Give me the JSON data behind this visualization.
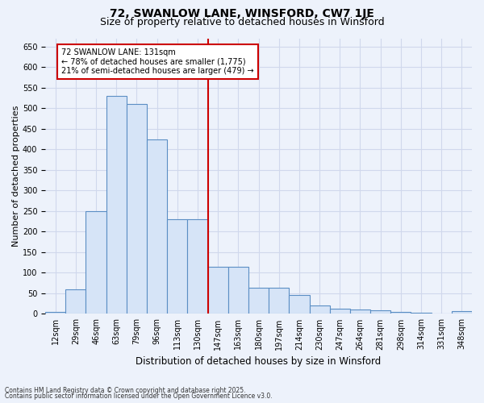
{
  "title": "72, SWANLOW LANE, WINSFORD, CW7 1JE",
  "subtitle": "Size of property relative to detached houses in Winsford",
  "xlabel": "Distribution of detached houses by size in Winsford",
  "ylabel": "Number of detached properties",
  "categories": [
    "12sqm",
    "29sqm",
    "46sqm",
    "63sqm",
    "79sqm",
    "96sqm",
    "113sqm",
    "130sqm",
    "147sqm",
    "163sqm",
    "180sqm",
    "197sqm",
    "214sqm",
    "230sqm",
    "247sqm",
    "264sqm",
    "281sqm",
    "298sqm",
    "314sqm",
    "331sqm",
    "348sqm"
  ],
  "bar_heights": [
    5,
    60,
    250,
    530,
    510,
    425,
    230,
    230,
    115,
    115,
    63,
    63,
    46,
    20,
    12,
    10,
    8,
    5,
    2,
    0,
    7
  ],
  "bar_color": "#d6e4f7",
  "bar_edge_color": "#5b8ec4",
  "vline_x": 7.5,
  "vline_color": "#cc0000",
  "annotation_text": "72 SWANLOW LANE: 131sqm\n← 78% of detached houses are smaller (1,775)\n21% of semi-detached houses are larger (479) →",
  "annotation_box_facecolor": "#ffffff",
  "annotation_box_edgecolor": "#cc0000",
  "ylim": [
    0,
    670
  ],
  "yticks": [
    0,
    50,
    100,
    150,
    200,
    250,
    300,
    350,
    400,
    450,
    500,
    550,
    600,
    650
  ],
  "footnote1": "Contains HM Land Registry data © Crown copyright and database right 2025.",
  "footnote2": "Contains public sector information licensed under the Open Government Licence v3.0.",
  "bg_color": "#edf2fb",
  "grid_color": "#d0d8ec",
  "title_fontsize": 10,
  "subtitle_fontsize": 9,
  "ylabel_fontsize": 8,
  "xlabel_fontsize": 8.5,
  "tick_fontsize": 7,
  "footnote_fontsize": 5.5
}
